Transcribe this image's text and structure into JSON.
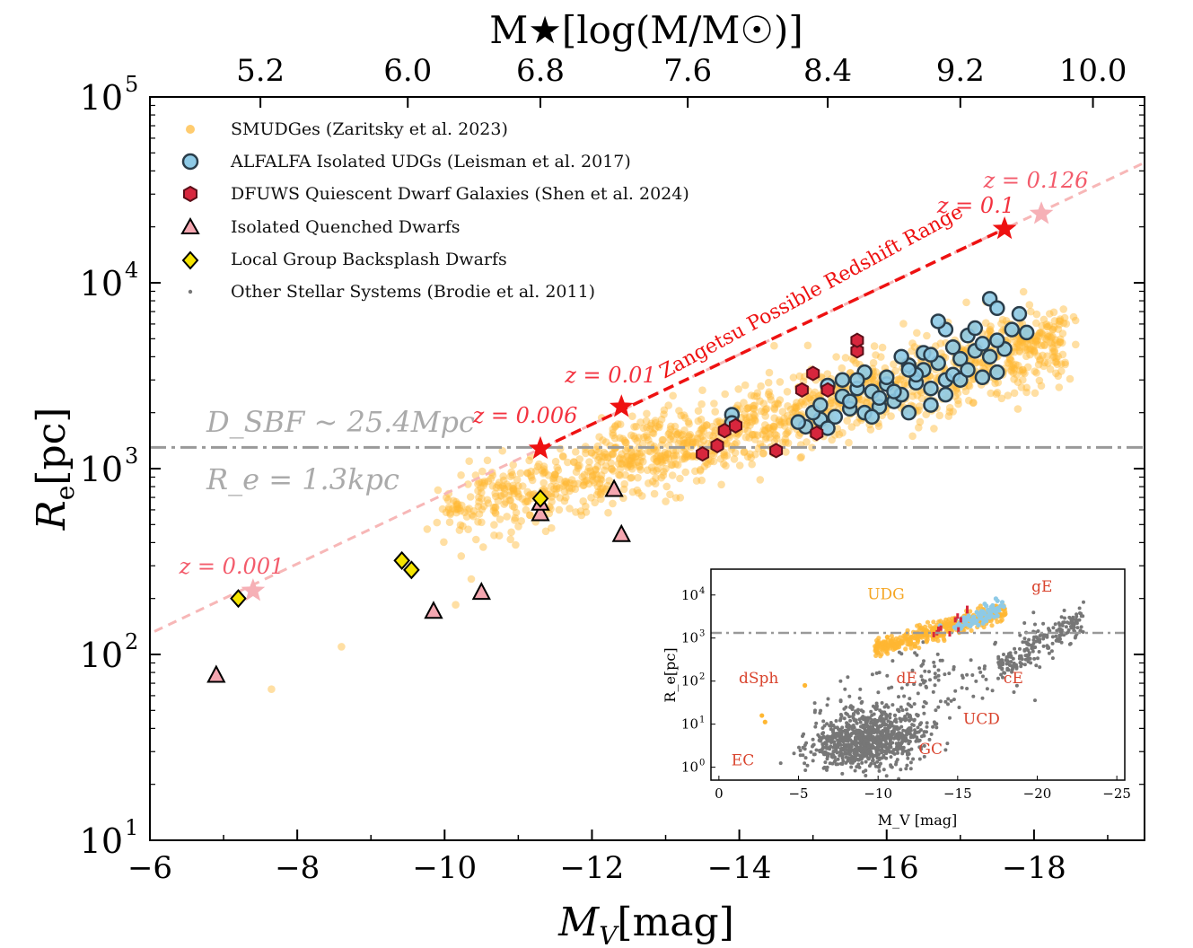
{
  "chart_data": {
    "type": "scatter",
    "x_axis": {
      "label_main": "M",
      "label_sub": "V",
      "label_unit": "[mag]",
      "lim": [
        -6,
        -19.5
      ],
      "ticks": [
        -6,
        -8,
        -10,
        -12,
        -14,
        -16,
        -18
      ],
      "tick_labels": [
        "−6",
        "−8",
        "−10",
        "−12",
        "−14",
        "−16",
        "−18"
      ]
    },
    "y_axis": {
      "label_main": "R",
      "label_sub": "e",
      "label_unit": "[pc]",
      "scale": "log",
      "lim": [
        10,
        100000
      ],
      "ticks": [
        10,
        100,
        1000,
        10000,
        100000
      ],
      "tick_labels": [
        "10",
        "10",
        "10",
        "10",
        "10"
      ],
      "tick_exps": [
        "1",
        "2",
        "3",
        "4",
        "5"
      ]
    },
    "top_axis": {
      "label": "M★[log(M/M☉)]",
      "tick_labels": [
        "5.2",
        "6.0",
        "6.8",
        "7.6",
        "8.4",
        "9.2",
        "10.0"
      ],
      "tick_mv": [
        -7.5,
        -9.5,
        -11.3,
        -13.3,
        -15.2,
        -17.0,
        -18.8
      ]
    },
    "legend": [
      {
        "label": "SMUDGes (Zaritsky et al. 2023)",
        "marker": "circle",
        "color": "#ffb732"
      },
      {
        "label": "ALFALFA Isolated UDGs (Leisman et al. 2017)",
        "marker": "circle",
        "color": "#8ecae6"
      },
      {
        "label": "DFUWS Quiescent Dwarf Galaxies (Shen et al. 2024)",
        "marker": "hexagon",
        "color": "#d7263d"
      },
      {
        "label": "Isolated Quenched Dwarfs",
        "marker": "triangle",
        "color": "#f4a6b0"
      },
      {
        "label": "Local Group Backsplash Dwarfs",
        "marker": "diamond",
        "color": "#f5e400"
      },
      {
        "label": "Other Stellar Systems (Brodie et al. 2011)",
        "marker": "dot",
        "color": "#777777"
      }
    ],
    "series": [
      {
        "name": "ALFALFA Isolated UDGs",
        "points": [
          [
            -13.9,
            1950
          ],
          [
            -13.9,
            1760
          ],
          [
            -14.9,
            1680
          ],
          [
            -15.1,
            1840
          ],
          [
            -15.0,
            2000
          ],
          [
            -15.3,
            1900
          ],
          [
            -15.5,
            2100
          ],
          [
            -15.7,
            2000
          ],
          [
            -15.9,
            2150
          ],
          [
            -16.1,
            2300
          ],
          [
            -15.4,
            2450
          ],
          [
            -15.6,
            2700
          ],
          [
            -15.8,
            2600
          ],
          [
            -16.0,
            2850
          ],
          [
            -16.2,
            2500
          ],
          [
            -16.4,
            2900
          ],
          [
            -16.6,
            2700
          ],
          [
            -16.8,
            3000
          ],
          [
            -16.9,
            3200
          ],
          [
            -16.5,
            3400
          ],
          [
            -16.7,
            3700
          ],
          [
            -16.3,
            3600
          ],
          [
            -16.2,
            4000
          ],
          [
            -16.5,
            4200
          ],
          [
            -16.9,
            4500
          ],
          [
            -17.0,
            3900
          ],
          [
            -17.2,
            4300
          ],
          [
            -17.3,
            4700
          ],
          [
            -17.4,
            4000
          ],
          [
            -17.6,
            4400
          ],
          [
            -17.5,
            4900
          ],
          [
            -17.1,
            5200
          ],
          [
            -17.2,
            5700
          ],
          [
            -16.8,
            5600
          ],
          [
            -16.7,
            6200
          ],
          [
            -17.7,
            5600
          ],
          [
            -17.5,
            3300
          ],
          [
            -17.3,
            3100
          ],
          [
            -17.0,
            3000
          ],
          [
            -16.4,
            3200
          ],
          [
            -15.7,
            3300
          ],
          [
            -16.0,
            3100
          ],
          [
            -15.4,
            3000
          ],
          [
            -15.2,
            2800
          ],
          [
            -15.5,
            2300
          ],
          [
            -15.9,
            2400
          ],
          [
            -16.3,
            2000
          ],
          [
            -16.6,
            2200
          ],
          [
            -15.1,
            2200
          ],
          [
            -14.8,
            1780
          ],
          [
            -15.2,
            1650
          ],
          [
            -17.9,
            5400
          ],
          [
            -17.8,
            6800
          ],
          [
            -17.4,
            8200
          ],
          [
            -17.5,
            7300
          ],
          [
            -16.6,
            4100
          ],
          [
            -16.3,
            3400
          ],
          [
            -15.6,
            3000
          ],
          [
            -17.1,
            3400
          ],
          [
            -16.8,
            2500
          ],
          [
            -16.1,
            2600
          ],
          [
            -15.8,
            1900
          ]
        ]
      },
      {
        "name": "DFUWS Quiescent Dwarfs",
        "points": [
          [
            -13.5,
            1200
          ],
          [
            -13.7,
            1330
          ],
          [
            -13.8,
            1600
          ],
          [
            -13.95,
            1700
          ],
          [
            -14.5,
            1250
          ],
          [
            -15.05,
            1550
          ],
          [
            -14.85,
            2650
          ],
          [
            -15.2,
            2650
          ],
          [
            -15.0,
            3250
          ],
          [
            -15.6,
            4300
          ],
          [
            -15.6,
            4900
          ]
        ]
      },
      {
        "name": "Isolated Quenched Dwarfs",
        "points": [
          [
            -6.9,
            77
          ],
          [
            -9.85,
            170
          ],
          [
            -10.5,
            215
          ],
          [
            -11.3,
            570
          ],
          [
            -11.3,
            650
          ],
          [
            -12.3,
            770
          ],
          [
            -12.4,
            440
          ]
        ]
      },
      {
        "name": "Local Group Backsplash Dwarfs",
        "points": [
          [
            -7.2,
            200
          ],
          [
            -9.42,
            320
          ],
          [
            -9.55,
            285
          ],
          [
            -11.3,
            690
          ]
        ]
      },
      {
        "name": "Zangetsu possible range",
        "points": [
          [
            -7.4,
            220
          ],
          [
            -11.3,
            1280
          ],
          [
            -12.4,
            2150
          ],
          [
            -17.6,
            19500
          ],
          [
            -18.1,
            23500
          ]
        ]
      }
    ],
    "annotations": [
      {
        "text": "z = 0.001",
        "x": -7.4,
        "y": 220
      },
      {
        "text": "z = 0.006",
        "x": -11.3,
        "y": 1280
      },
      {
        "text": "z = 0.01",
        "x": -12.4,
        "y": 2150
      },
      {
        "text": "z = 0.1",
        "x": -17.6,
        "y": 19500
      },
      {
        "text": "z = 0.126",
        "x": -18.1,
        "y": 23500
      },
      {
        "text": "Zangetsu Possible Redshift Range"
      },
      {
        "text": "D_SBF ~ 25.4Mpc"
      },
      {
        "text": "R_e = 1.3kpc"
      }
    ],
    "reference_line_pc": 1300,
    "inset": {
      "type": "scatter",
      "x_label": "M_V [mag]",
      "y_label": "R_e[pc]",
      "x_ticks": [
        "0",
        "−5",
        "−10",
        "−15",
        "−20",
        "−25"
      ],
      "x_tick_values": [
        0,
        -5,
        -10,
        -15,
        -20,
        -25
      ],
      "y_tick_exps": [
        "0",
        "1",
        "2",
        "3",
        "4"
      ],
      "xlim": [
        0.5,
        -25.5
      ],
      "ylim_log10": [
        -0.3,
        4.6
      ],
      "labels": [
        "UDG",
        "gE",
        "dSph",
        "dE",
        "cE",
        "UCD",
        "GC",
        "EC"
      ],
      "label_positions": [
        [
          -10.5,
          8000
        ],
        [
          -20.3,
          12000
        ],
        [
          -2.5,
          90
        ],
        [
          -11.8,
          90
        ],
        [
          -18.5,
          90
        ],
        [
          -16.5,
          10
        ],
        [
          -13.3,
          2
        ],
        [
          -1.5,
          1.1
        ]
      ]
    }
  }
}
